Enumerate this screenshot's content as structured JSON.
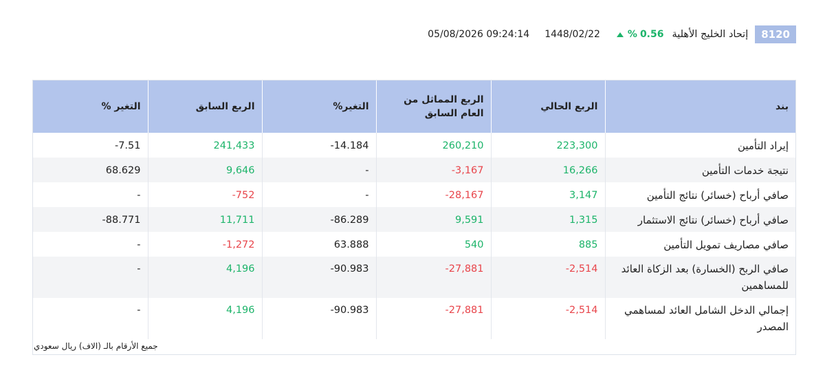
{
  "header": {
    "code": "8120",
    "company": "إتحاد الخليج الأهلية",
    "change_value": "0.56",
    "change_unit": "%",
    "hijri_date": "1448/02/22",
    "gregorian_datetime": "05/08/2026 09:24:14",
    "accent_color": "#1db46a",
    "badge_color": "#a9bde6"
  },
  "table": {
    "columns": [
      "بند",
      "الربع الحالي",
      "الربع المماثل من العام السابق",
      "التغير%",
      "الربع السابق",
      "التغير %"
    ],
    "rows": [
      {
        "label": "إيراد التأمين",
        "cells": [
          {
            "v": "223,300",
            "c": "pos"
          },
          {
            "v": "260,210",
            "c": "pos"
          },
          {
            "v": "-14.184",
            "c": "neu"
          },
          {
            "v": "241,433",
            "c": "pos"
          },
          {
            "v": "-7.51",
            "c": "neu"
          }
        ]
      },
      {
        "label": "نتيجة خدمات التأمين",
        "cells": [
          {
            "v": "16,266",
            "c": "pos"
          },
          {
            "v": "-3,167",
            "c": "neg"
          },
          {
            "v": "-",
            "c": "neu"
          },
          {
            "v": "9,646",
            "c": "pos"
          },
          {
            "v": "68.629",
            "c": "neu"
          }
        ]
      },
      {
        "label": "صافي أرباح (خسائر) نتائج التأمين",
        "cells": [
          {
            "v": "3,147",
            "c": "pos"
          },
          {
            "v": "-28,167",
            "c": "neg"
          },
          {
            "v": "-",
            "c": "neu"
          },
          {
            "v": "-752",
            "c": "neg"
          },
          {
            "v": "-",
            "c": "neu"
          }
        ]
      },
      {
        "label": "صافي أرباح (خسائر) نتائج الاستثمار",
        "cells": [
          {
            "v": "1,315",
            "c": "pos"
          },
          {
            "v": "9,591",
            "c": "pos"
          },
          {
            "v": "-86.289",
            "c": "neu"
          },
          {
            "v": "11,711",
            "c": "pos"
          },
          {
            "v": "-88.771",
            "c": "neu"
          }
        ]
      },
      {
        "label": "صافي مصاريف تمويل التأمين",
        "cells": [
          {
            "v": "885",
            "c": "pos"
          },
          {
            "v": "540",
            "c": "pos"
          },
          {
            "v": "63.888",
            "c": "neu"
          },
          {
            "v": "-1,272",
            "c": "neg"
          },
          {
            "v": "-",
            "c": "neu"
          }
        ]
      },
      {
        "label": "صافي الربح (الخسارة) بعد الزكاة العائد للمساهمين",
        "cells": [
          {
            "v": "-2,514",
            "c": "neg"
          },
          {
            "v": "-27,881",
            "c": "neg"
          },
          {
            "v": "-90.983",
            "c": "neu"
          },
          {
            "v": "4,196",
            "c": "pos"
          },
          {
            "v": "-",
            "c": "neu"
          }
        ]
      },
      {
        "label": "إجمالي الدخل الشامل العائد لمساهمي المصدر",
        "cells": [
          {
            "v": "-2,514",
            "c": "neg"
          },
          {
            "v": "-27,881",
            "c": "neg"
          },
          {
            "v": "-90.983",
            "c": "neu"
          },
          {
            "v": "4,196",
            "c": "pos"
          },
          {
            "v": "-",
            "c": "neu"
          }
        ]
      }
    ]
  },
  "footnote": "جميع الأرقام بالـ (الاف) ريال سعودي"
}
